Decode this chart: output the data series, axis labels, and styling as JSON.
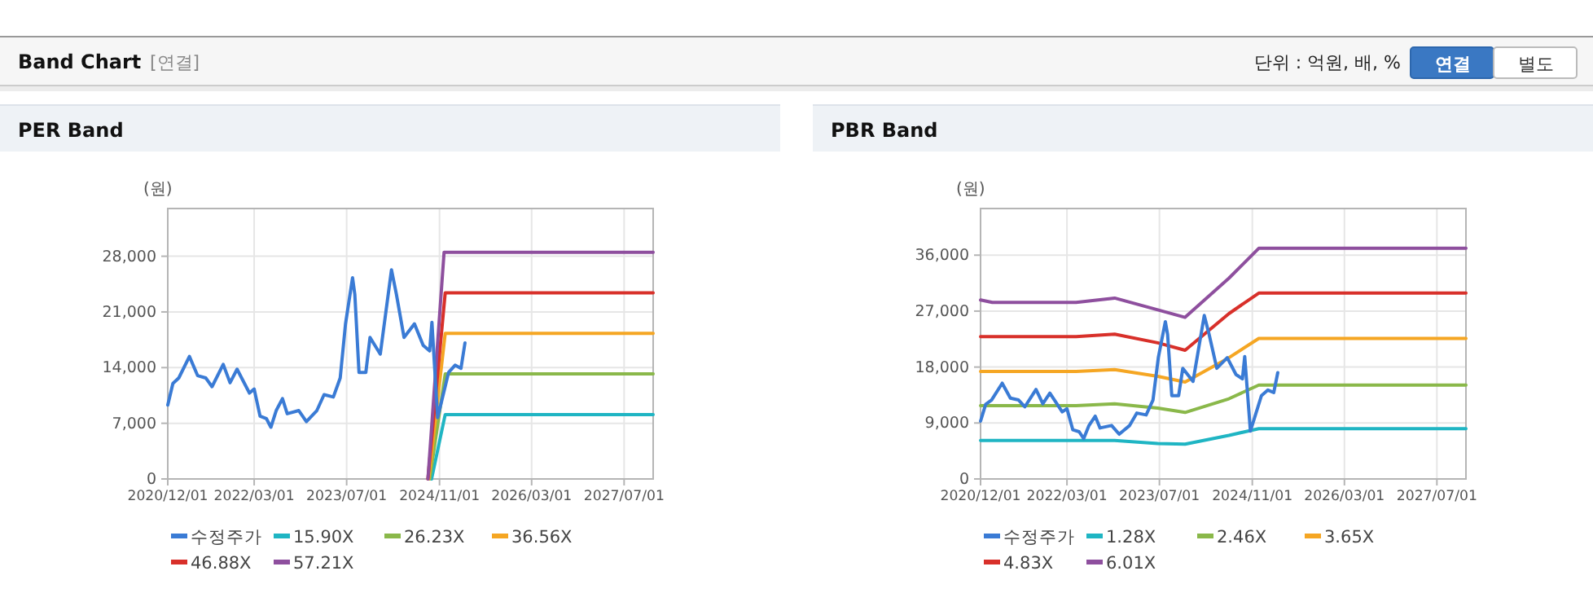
{
  "chart_data": [
    {
      "type": "line",
      "title": "PER Band",
      "ylabel": "(원)",
      "annotations": [
        "Band Chart",
        "[연결]",
        "단위 : 억원, 배, %",
        "연결",
        "별도"
      ],
      "xlim": [
        "2020-12-01",
        "2027-12-01"
      ],
      "xticks": [
        {
          "value": "2020-12-01",
          "label": "2020/12/01"
        },
        {
          "value": "2022-03-01",
          "label": "2022/03/01"
        },
        {
          "value": "2023-07-01",
          "label": "2023/07/01"
        },
        {
          "value": "2024-11-01",
          "label": "2024/11/01"
        },
        {
          "value": "2026-03-01",
          "label": "2026/03/01"
        },
        {
          "value": "2027-07-01",
          "label": "2027/07/01"
        }
      ],
      "ylim": [
        0,
        34000
      ],
      "yticks": [
        0,
        {
          "value": 7000,
          "label": "7,000"
        },
        {
          "value": 14000,
          "label": "14,000"
        },
        {
          "value": 21000,
          "label": "21,000"
        },
        {
          "value": 28000,
          "label": "28,000"
        }
      ],
      "grid": true,
      "legend": "bottom",
      "series": [
        {
          "name": "수정주가",
          "color": "#3a7bd5",
          "x": [
            "2020-12-01",
            "2020-12-28",
            "2021-01-28",
            "2021-03-25",
            "2021-05-07",
            "2021-06-19",
            "2021-07-22",
            "2021-09-19",
            "2021-10-25",
            "2021-12-01",
            "2022-02-04",
            "2022-03-01",
            "2022-04-01",
            "2022-05-04",
            "2022-05-28",
            "2022-06-25",
            "2022-07-28",
            "2022-08-22",
            "2022-10-22",
            "2022-12-01",
            "2023-01-25",
            "2023-03-04",
            "2023-04-22",
            "2023-05-28",
            "2023-06-25",
            "2023-08-01",
            "2023-08-13",
            "2023-09-04",
            "2023-10-10",
            "2023-11-01",
            "2023-12-25",
            "2024-02-22",
            "2024-03-19",
            "2024-04-28",
            "2024-06-22",
            "2024-08-07",
            "2024-09-10",
            "2024-09-22",
            "2024-10-22",
            "2024-12-19",
            "2025-01-22",
            "2025-02-22",
            "2025-03-15"
          ],
          "values": [
            9300,
            12000,
            12700,
            15400,
            13000,
            12700,
            11600,
            14400,
            12100,
            13800,
            10800,
            11300,
            7900,
            7600,
            6500,
            8600,
            10100,
            8200,
            8600,
            7200,
            8600,
            10600,
            10300,
            12700,
            19500,
            25300,
            23200,
            13400,
            13400,
            17800,
            15700,
            26300,
            23200,
            17800,
            19500,
            16800,
            16100,
            19700,
            7700,
            13400,
            14300,
            13900,
            17100
          ]
        },
        {
          "name": "15.90X",
          "color": "#1fb5c3",
          "x": [
            "2024-09-20",
            "2024-12-01",
            "2027-12-01"
          ],
          "values": [
            0,
            8100,
            8100
          ]
        },
        {
          "name": "26.23X",
          "color": "#8ab84a",
          "x": [
            "2024-09-10",
            "2024-12-01",
            "2027-12-01"
          ],
          "values": [
            0,
            13200,
            13200
          ]
        },
        {
          "name": "36.56X",
          "color": "#f5a623",
          "x": [
            "2024-09-05",
            "2024-12-01",
            "2027-12-01"
          ],
          "values": [
            0,
            18300,
            18300
          ]
        },
        {
          "name": "46.88X",
          "color": "#d8302a",
          "x": [
            "2024-09-01",
            "2024-12-01",
            "2027-12-01"
          ],
          "values": [
            0,
            23400,
            23400
          ]
        },
        {
          "name": "57.21X",
          "color": "#8e4f9e",
          "x": [
            "2024-09-01",
            "2024-11-25",
            "2027-12-01"
          ],
          "values": [
            0,
            28500,
            28500
          ]
        }
      ]
    },
    {
      "type": "line",
      "title": "PBR Band",
      "ylabel": "(원)",
      "xlim": [
        "2020-12-01",
        "2027-12-01"
      ],
      "xticks": [
        {
          "value": "2020-12-01",
          "label": "2020/12/01"
        },
        {
          "value": "2022-03-01",
          "label": "2022/03/01"
        },
        {
          "value": "2023-07-01",
          "label": "2023/07/01"
        },
        {
          "value": "2024-11-01",
          "label": "2024/11/01"
        },
        {
          "value": "2026-03-01",
          "label": "2026/03/01"
        },
        {
          "value": "2027-07-01",
          "label": "2027/07/01"
        }
      ],
      "ylim": [
        0,
        43500
      ],
      "yticks": [
        0,
        {
          "value": 9000,
          "label": "9,000"
        },
        {
          "value": 18000,
          "label": "18,000"
        },
        {
          "value": 27000,
          "label": "27,000"
        },
        {
          "value": 36000,
          "label": "36,000"
        }
      ],
      "grid": true,
      "legend": "bottom",
      "series": [
        {
          "name": "수정주가",
          "color": "#3a7bd5",
          "x": [
            "2020-12-01",
            "2020-12-28",
            "2021-01-28",
            "2021-03-25",
            "2021-05-07",
            "2021-06-19",
            "2021-07-22",
            "2021-09-19",
            "2021-10-25",
            "2021-12-01",
            "2022-02-04",
            "2022-03-01",
            "2022-04-01",
            "2022-05-04",
            "2022-05-28",
            "2022-06-25",
            "2022-07-28",
            "2022-08-22",
            "2022-10-22",
            "2022-12-01",
            "2023-01-25",
            "2023-03-04",
            "2023-04-22",
            "2023-05-28",
            "2023-06-25",
            "2023-08-01",
            "2023-08-13",
            "2023-09-04",
            "2023-10-10",
            "2023-11-01",
            "2023-12-25",
            "2024-02-22",
            "2024-03-19",
            "2024-04-28",
            "2024-06-22",
            "2024-08-07",
            "2024-09-10",
            "2024-09-22",
            "2024-10-22",
            "2024-12-19",
            "2025-01-22",
            "2025-02-22",
            "2025-03-15"
          ],
          "values": [
            9300,
            12000,
            12700,
            15400,
            13000,
            12700,
            11600,
            14400,
            12100,
            13800,
            10800,
            11300,
            7900,
            7600,
            6500,
            8600,
            10100,
            8200,
            8600,
            7200,
            8600,
            10600,
            10300,
            12700,
            19500,
            25300,
            23200,
            13400,
            13400,
            17800,
            15700,
            26300,
            23200,
            17800,
            19500,
            16800,
            16100,
            19700,
            7700,
            13400,
            14300,
            13900,
            17100
          ]
        },
        {
          "name": "1.28X",
          "color": "#1fb5c3",
          "x": [
            "2020-12-01",
            "2022-04-18",
            "2022-11-07",
            "2023-06-22",
            "2023-11-13",
            "2024-07-01",
            "2024-12-05",
            "2027-12-01"
          ],
          "values": [
            6200,
            6200,
            6200,
            5700,
            5600,
            7000,
            8100,
            8100
          ]
        },
        {
          "name": "2.46X",
          "color": "#8ab84a",
          "x": [
            "2020-12-01",
            "2022-04-18",
            "2022-11-07",
            "2023-06-22",
            "2023-11-13",
            "2024-07-01",
            "2024-12-05",
            "2027-12-01"
          ],
          "values": [
            11800,
            11800,
            12100,
            11400,
            10700,
            12900,
            15100,
            15100
          ]
        },
        {
          "name": "3.65X",
          "color": "#f5a623",
          "x": [
            "2020-12-01",
            "2022-04-18",
            "2022-11-07",
            "2023-06-22",
            "2023-11-13",
            "2024-07-01",
            "2024-12-05",
            "2027-12-01"
          ],
          "values": [
            17300,
            17300,
            17600,
            16500,
            15600,
            19500,
            22600,
            22600
          ]
        },
        {
          "name": "4.83X",
          "color": "#d8302a",
          "x": [
            "2020-12-01",
            "2022-04-18",
            "2022-11-07",
            "2023-06-22",
            "2023-11-13",
            "2024-07-01",
            "2024-12-05",
            "2027-12-01"
          ],
          "values": [
            22900,
            22900,
            23300,
            21900,
            20700,
            26600,
            29900,
            29900
          ]
        },
        {
          "name": "6.01X",
          "color": "#8e4f9e",
          "x": [
            "2020-12-01",
            "2021-02-01",
            "2022-04-18",
            "2022-11-07",
            "2023-06-22",
            "2023-11-13",
            "2024-07-01",
            "2024-12-05",
            "2027-12-01"
          ],
          "values": [
            28800,
            28400,
            28400,
            29100,
            27200,
            26000,
            32300,
            37100,
            37100
          ]
        }
      ]
    }
  ]
}
